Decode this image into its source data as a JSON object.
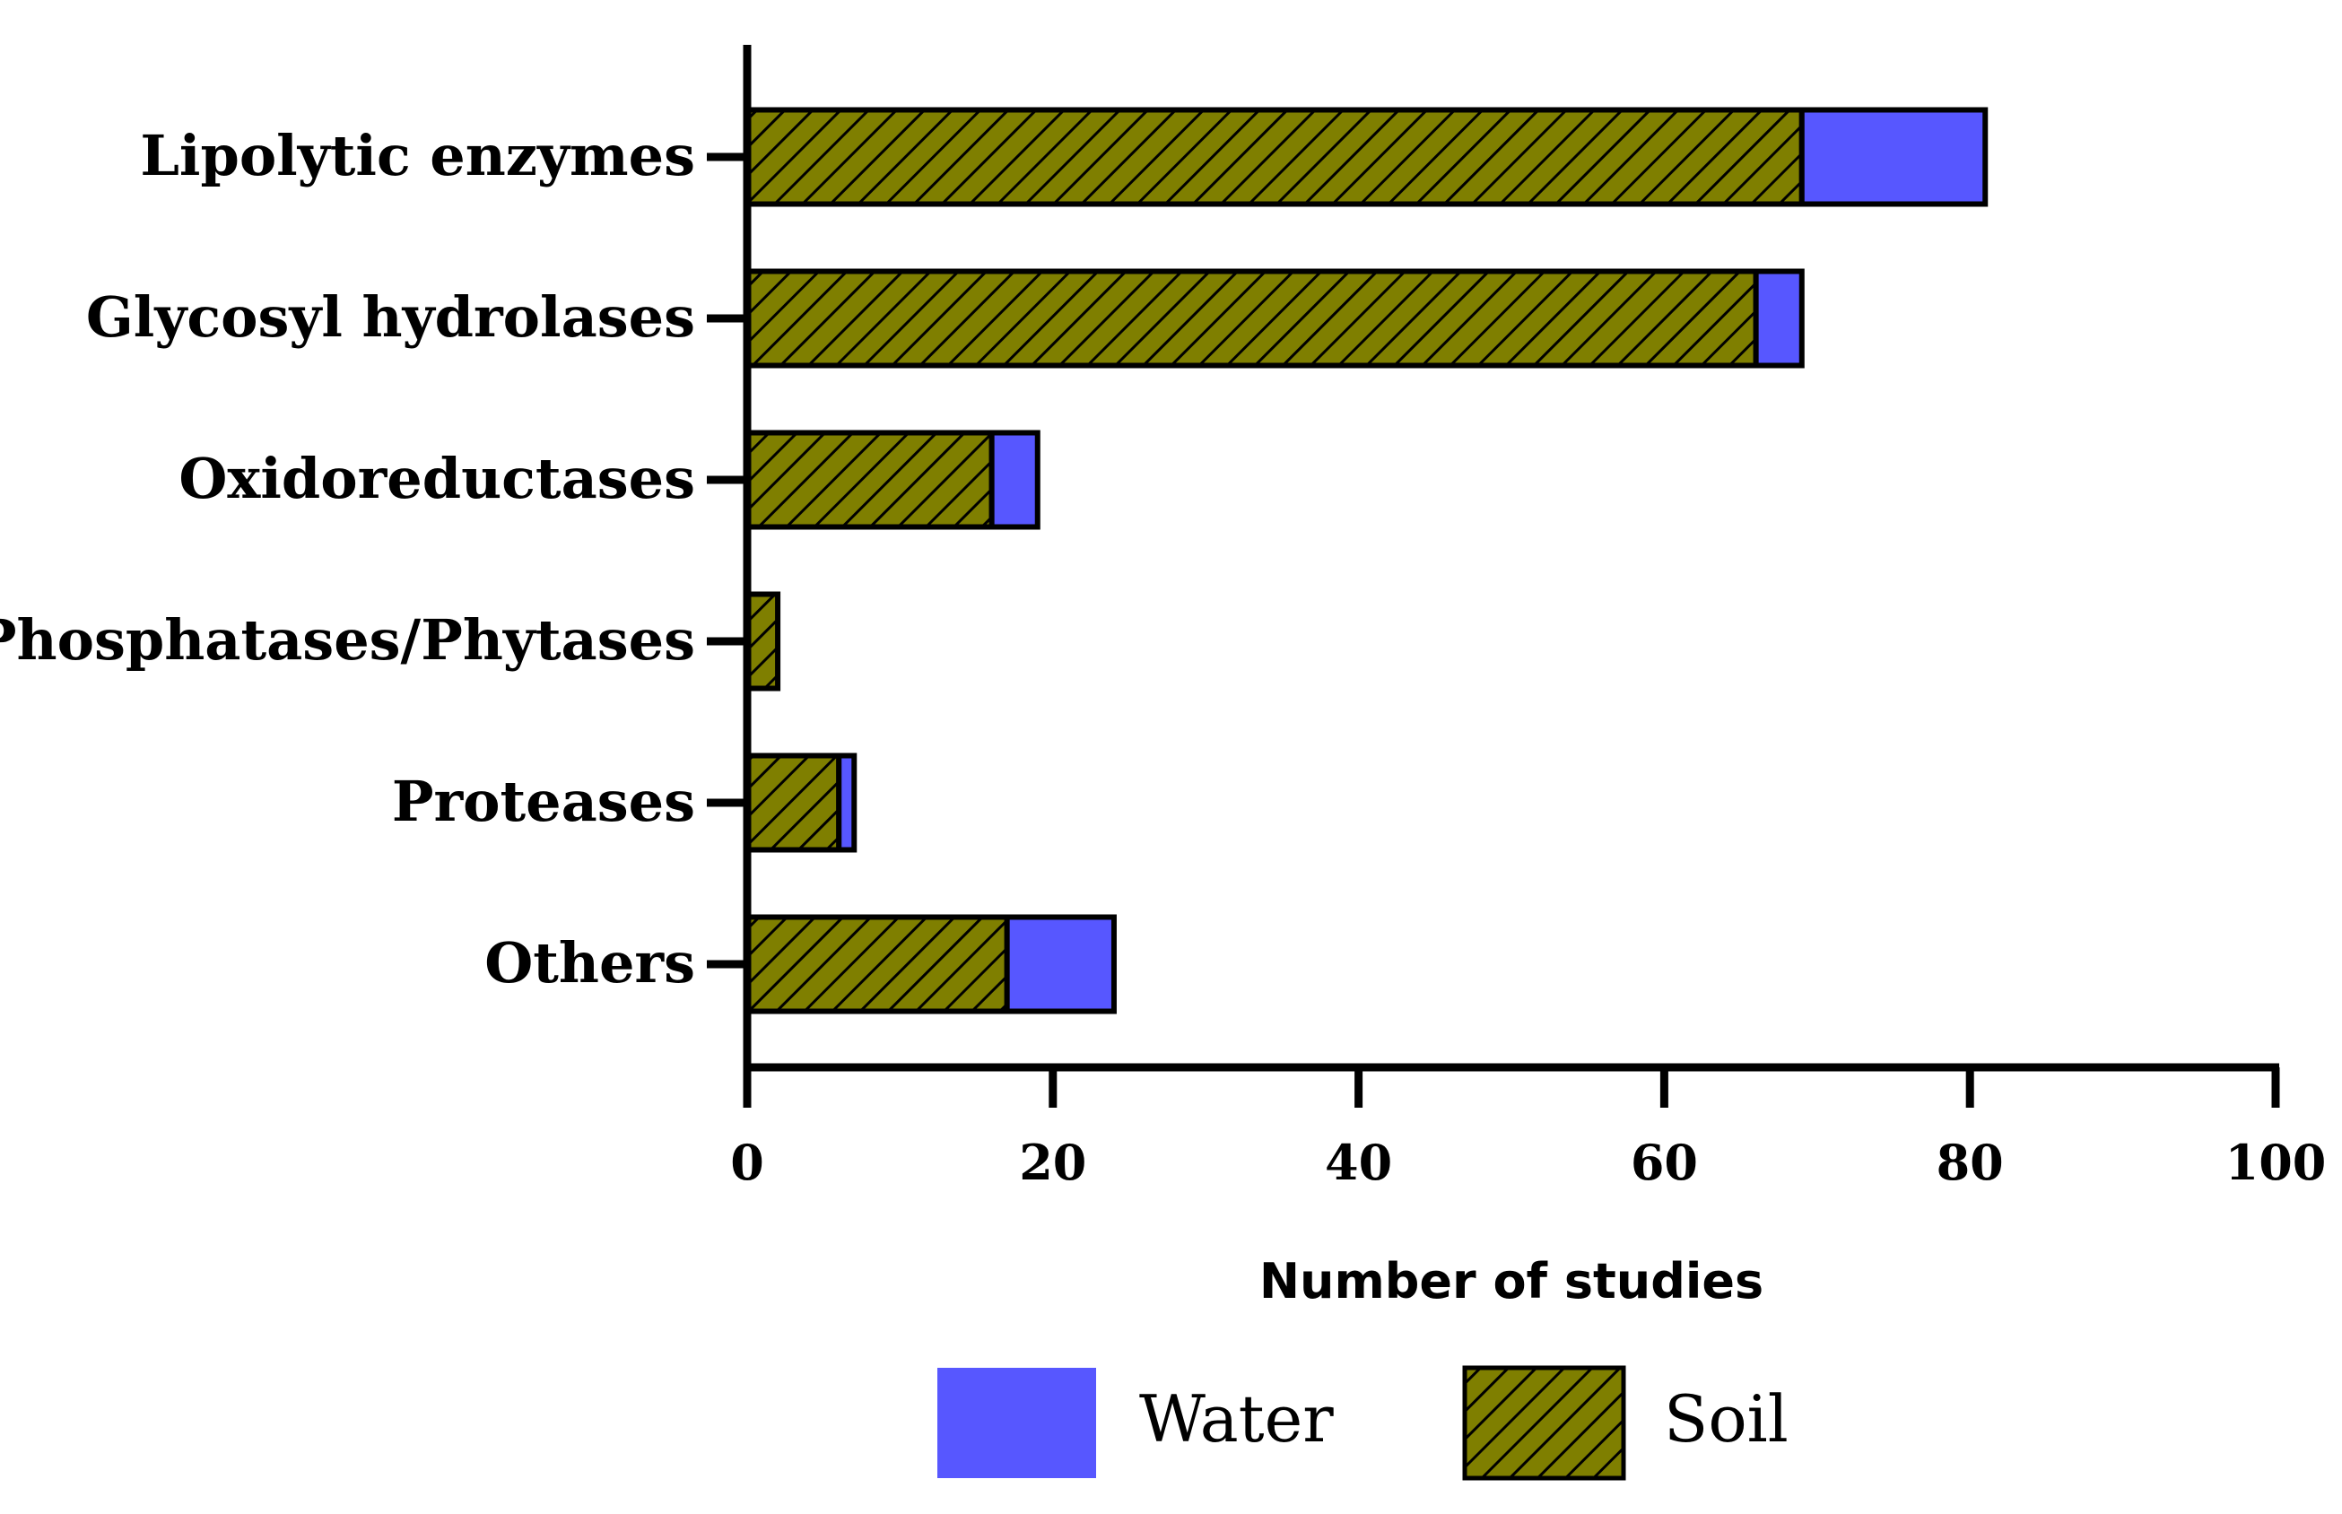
{
  "chart_data": {
    "type": "bar",
    "orientation": "horizontal",
    "stacked": true,
    "categories": [
      "Lipolytic enzymes",
      "Glycosyl hydrolases",
      "Oxidoreductases",
      "Phosphatases/Phytases",
      "Proteases",
      "Others"
    ],
    "series": [
      {
        "name": "Soil",
        "values": [
          69,
          66,
          16,
          2,
          6,
          17
        ],
        "color": "#7f7f00",
        "pattern": "hatched"
      },
      {
        "name": "Water",
        "values": [
          12,
          3,
          3,
          0,
          1,
          7
        ],
        "color": "#5757ff"
      }
    ],
    "xlabel": "Number of studies",
    "ylabel": "",
    "xlim": [
      0,
      100
    ],
    "xticks": [
      0,
      20,
      40,
      60,
      80,
      100
    ],
    "legend": [
      {
        "name": "Water",
        "color": "#5757ff"
      },
      {
        "name": "Soil",
        "color": "#7f7f00",
        "pattern": "hatched"
      }
    ],
    "legend_position": "bottom",
    "grid": false
  }
}
